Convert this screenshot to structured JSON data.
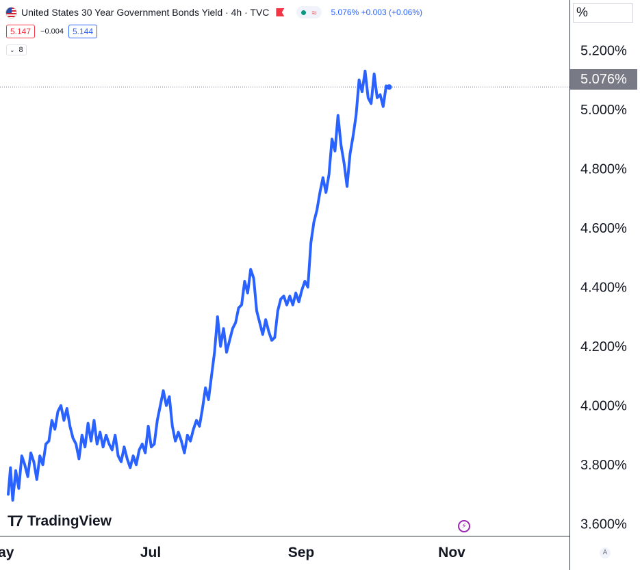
{
  "legend": {
    "symbol_title": "United States 30 Year Government Bonds Yield · 4h · TVC",
    "status_icon": "approx-wave-icon",
    "last_value": "5.076%",
    "change": "+0.003",
    "change_pct": "(+0.06%)"
  },
  "quote": {
    "bid": "5.147",
    "spread": "−0.004",
    "ask": "5.144"
  },
  "indicators_collapsed": "8",
  "price_axis": {
    "unit": "%",
    "current_price_label": "5.076%"
  },
  "branding": {
    "logo_text": "TradingView"
  },
  "auto_scale": "A",
  "colors": {
    "line": "#2962ff",
    "tag_bg": "#787b86",
    "bid": "#f23645",
    "ask": "#2962ff"
  },
  "chart_data": {
    "type": "line",
    "title": "United States 30 Year Government Bonds Yield · 4h · TVC",
    "xlabel": "",
    "ylabel": "",
    "y_unit": "%",
    "ylim": [
      3.56,
      5.37
    ],
    "x_ticks": [
      "May",
      "Jul",
      "Sep",
      "Nov"
    ],
    "x_tick_positions": [
      0,
      2,
      4,
      6
    ],
    "xlim": [
      0,
      7.2
    ],
    "y_ticks": [
      3.6,
      3.8,
      4.0,
      4.2,
      4.4,
      4.6,
      4.8,
      5.0,
      5.2
    ],
    "y_tick_labels": [
      "3.600%",
      "3.800%",
      "4.000%",
      "4.200%",
      "4.400%",
      "4.600%",
      "4.800%",
      "5.000%",
      "5.200%"
    ],
    "current_value": 5.076,
    "grid": false,
    "series": [
      {
        "points": [
          [
            0.0,
            3.7
          ],
          [
            0.03,
            3.79
          ],
          [
            0.06,
            3.68
          ],
          [
            0.1,
            3.78
          ],
          [
            0.14,
            3.72
          ],
          [
            0.18,
            3.83
          ],
          [
            0.22,
            3.8
          ],
          [
            0.26,
            3.76
          ],
          [
            0.3,
            3.84
          ],
          [
            0.34,
            3.81
          ],
          [
            0.38,
            3.75
          ],
          [
            0.42,
            3.83
          ],
          [
            0.46,
            3.8
          ],
          [
            0.5,
            3.87
          ],
          [
            0.54,
            3.88
          ],
          [
            0.58,
            3.95
          ],
          [
            0.62,
            3.92
          ],
          [
            0.66,
            3.98
          ],
          [
            0.7,
            4.0
          ],
          [
            0.74,
            3.95
          ],
          [
            0.78,
            3.99
          ],
          [
            0.82,
            3.93
          ],
          [
            0.86,
            3.89
          ],
          [
            0.9,
            3.87
          ],
          [
            0.94,
            3.82
          ],
          [
            0.98,
            3.9
          ],
          [
            1.02,
            3.86
          ],
          [
            1.06,
            3.94
          ],
          [
            1.1,
            3.88
          ],
          [
            1.14,
            3.95
          ],
          [
            1.18,
            3.87
          ],
          [
            1.22,
            3.91
          ],
          [
            1.26,
            3.86
          ],
          [
            1.3,
            3.9
          ],
          [
            1.34,
            3.87
          ],
          [
            1.38,
            3.85
          ],
          [
            1.42,
            3.9
          ],
          [
            1.46,
            3.83
          ],
          [
            1.5,
            3.81
          ],
          [
            1.54,
            3.86
          ],
          [
            1.58,
            3.82
          ],
          [
            1.62,
            3.79
          ],
          [
            1.66,
            3.83
          ],
          [
            1.7,
            3.8
          ],
          [
            1.74,
            3.85
          ],
          [
            1.78,
            3.87
          ],
          [
            1.82,
            3.84
          ],
          [
            1.86,
            3.93
          ],
          [
            1.9,
            3.86
          ],
          [
            1.94,
            3.87
          ],
          [
            1.98,
            3.95
          ],
          [
            2.02,
            4.0
          ],
          [
            2.06,
            4.05
          ],
          [
            2.1,
            4.0
          ],
          [
            2.14,
            4.03
          ],
          [
            2.18,
            3.93
          ],
          [
            2.22,
            3.88
          ],
          [
            2.26,
            3.91
          ],
          [
            2.3,
            3.88
          ],
          [
            2.34,
            3.84
          ],
          [
            2.38,
            3.9
          ],
          [
            2.42,
            3.88
          ],
          [
            2.46,
            3.92
          ],
          [
            2.5,
            3.95
          ],
          [
            2.54,
            3.93
          ],
          [
            2.58,
            3.99
          ],
          [
            2.62,
            4.06
          ],
          [
            2.66,
            4.02
          ],
          [
            2.7,
            4.1
          ],
          [
            2.74,
            4.18
          ],
          [
            2.78,
            4.3
          ],
          [
            2.82,
            4.2
          ],
          [
            2.86,
            4.26
          ],
          [
            2.9,
            4.18
          ],
          [
            2.94,
            4.22
          ],
          [
            2.98,
            4.26
          ],
          [
            3.02,
            4.28
          ],
          [
            3.06,
            4.33
          ],
          [
            3.1,
            4.34
          ],
          [
            3.14,
            4.42
          ],
          [
            3.18,
            4.38
          ],
          [
            3.22,
            4.46
          ],
          [
            3.26,
            4.43
          ],
          [
            3.3,
            4.32
          ],
          [
            3.34,
            4.28
          ],
          [
            3.38,
            4.24
          ],
          [
            3.42,
            4.29
          ],
          [
            3.46,
            4.25
          ],
          [
            3.5,
            4.22
          ],
          [
            3.54,
            4.23
          ],
          [
            3.58,
            4.32
          ],
          [
            3.62,
            4.36
          ],
          [
            3.66,
            4.37
          ],
          [
            3.7,
            4.34
          ],
          [
            3.74,
            4.37
          ],
          [
            3.78,
            4.34
          ],
          [
            3.82,
            4.38
          ],
          [
            3.86,
            4.35
          ],
          [
            3.9,
            4.39
          ],
          [
            3.94,
            4.42
          ],
          [
            3.98,
            4.4
          ],
          [
            4.02,
            4.55
          ],
          [
            4.06,
            4.62
          ],
          [
            4.1,
            4.66
          ],
          [
            4.14,
            4.72
          ],
          [
            4.18,
            4.77
          ],
          [
            4.22,
            4.72
          ],
          [
            4.26,
            4.78
          ],
          [
            4.3,
            4.9
          ],
          [
            4.34,
            4.86
          ],
          [
            4.38,
            4.98
          ],
          [
            4.42,
            4.88
          ],
          [
            4.46,
            4.82
          ],
          [
            4.5,
            4.74
          ],
          [
            4.54,
            4.85
          ],
          [
            4.58,
            4.91
          ],
          [
            4.62,
            4.98
          ],
          [
            4.66,
            5.1
          ],
          [
            4.7,
            5.06
          ],
          [
            4.74,
            5.13
          ],
          [
            4.78,
            5.04
          ],
          [
            4.82,
            5.02
          ],
          [
            4.86,
            5.12
          ],
          [
            4.9,
            5.04
          ],
          [
            4.94,
            5.05
          ],
          [
            4.98,
            5.01
          ],
          [
            5.02,
            5.08
          ],
          [
            5.06,
            5.076
          ]
        ]
      }
    ]
  }
}
